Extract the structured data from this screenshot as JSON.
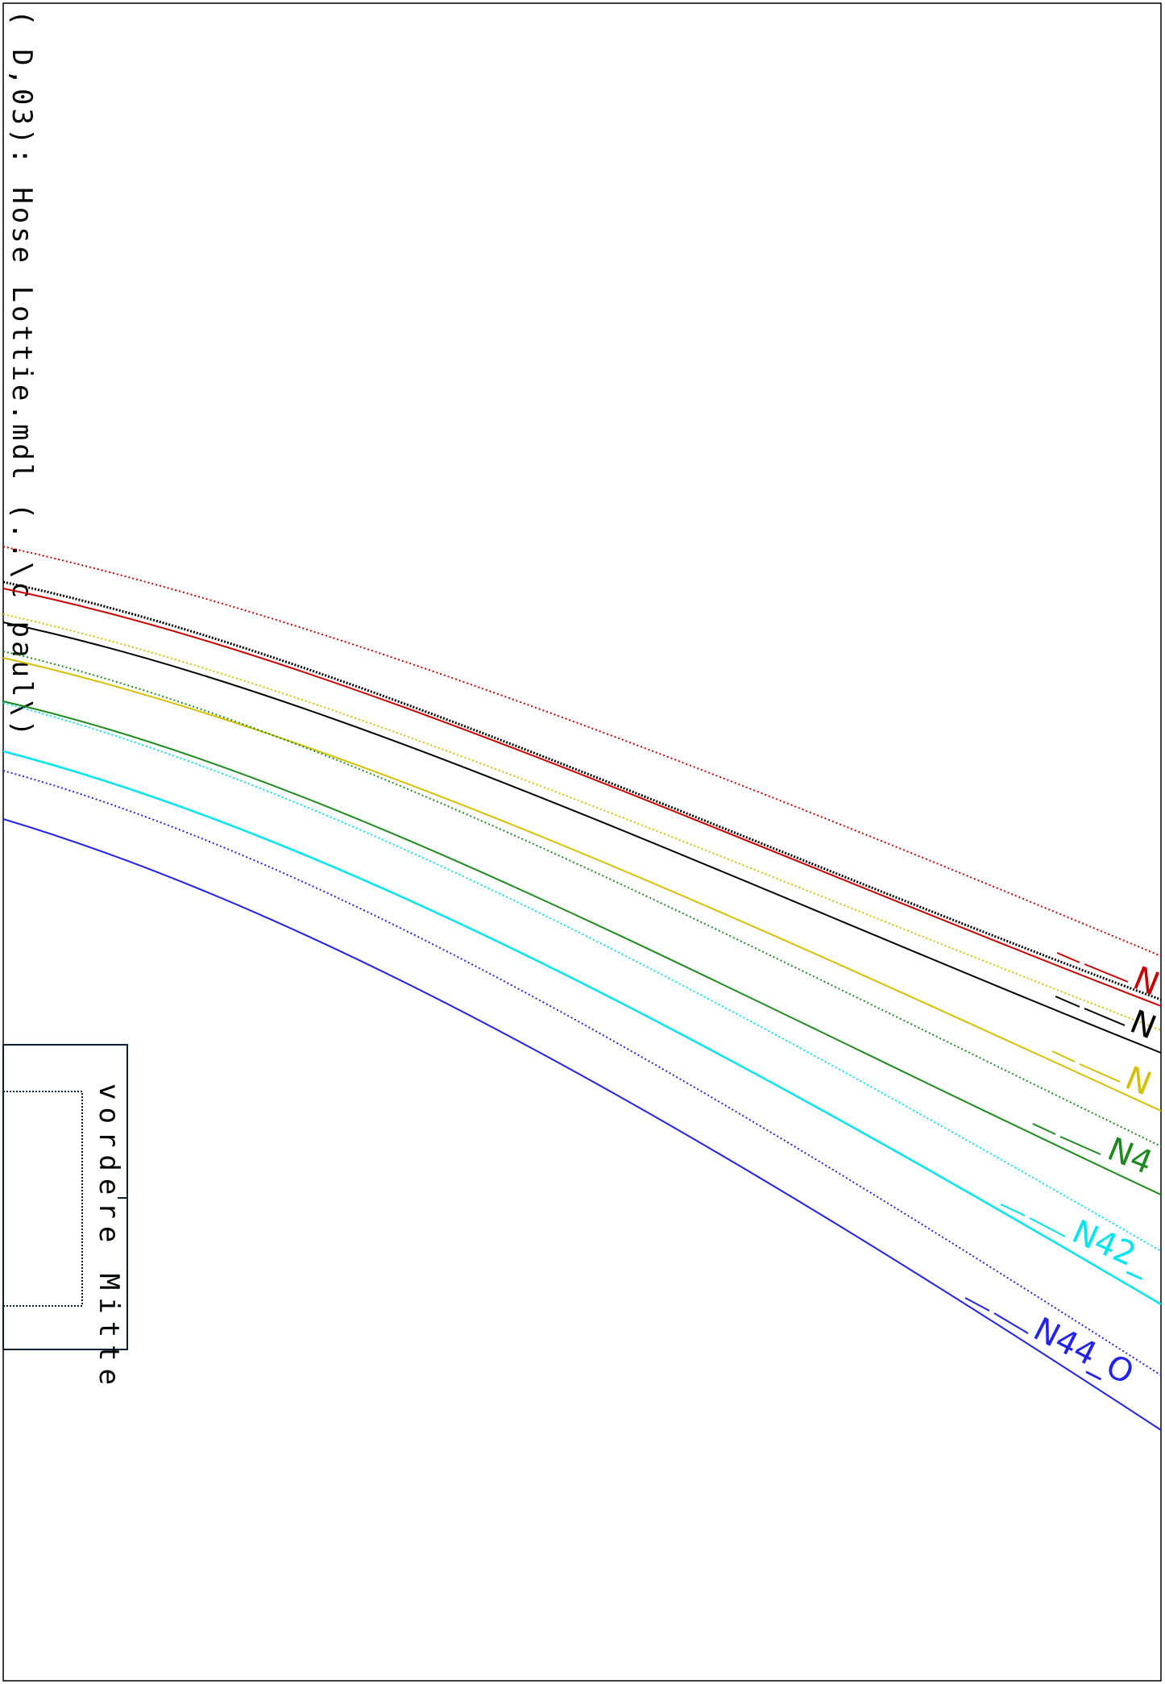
{
  "header": {
    "title_text": "( D,03): Hose Lottie.mdl (..\\c paul\\)"
  },
  "block": {
    "label": "vordere Mitte",
    "stroke_color": "#0b1f33"
  },
  "curves": [
    {
      "key": "red",
      "label": "N",
      "color": "#cc0000"
    },
    {
      "key": "black",
      "label": "N",
      "color": "#000000"
    },
    {
      "key": "yellow",
      "label": "N",
      "color": "#d4c000"
    },
    {
      "key": "green",
      "label": "N4",
      "color": "#1f8a1f"
    },
    {
      "key": "cyan",
      "label": "N42_",
      "color": "#00e5ee"
    },
    {
      "key": "blue",
      "label": "N44_O",
      "color": "#2222ee"
    }
  ]
}
